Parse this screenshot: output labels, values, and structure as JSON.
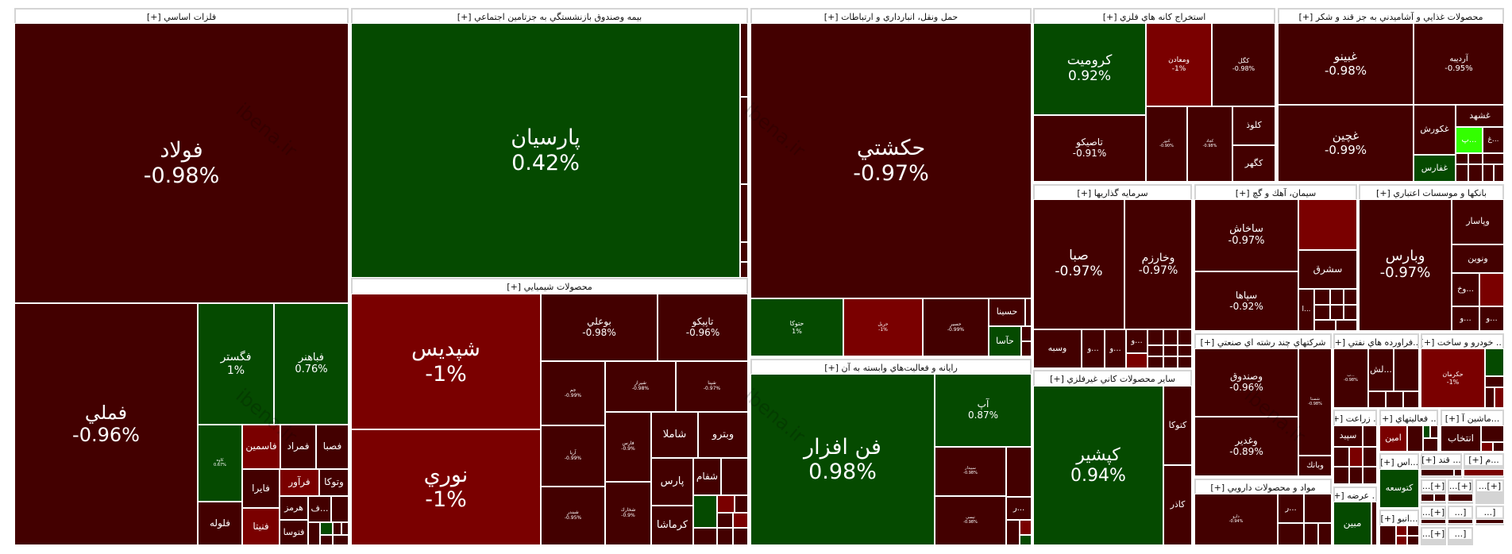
{
  "colors": {
    "dark": "#430000",
    "red": "#7a0000",
    "green": "#054a00",
    "lime": "#33ff00"
  },
  "watermark": "ibena.ir",
  "sectors": [
    {
      "title": "فلزات اساسي [+]",
      "cells": [
        {
          "name": "فولاد",
          "change": "-0.98%",
          "tone": "dark"
        },
        {
          "name": "فملي",
          "change": "-0.96%",
          "tone": "dark"
        },
        {
          "name": "فگستر",
          "change": "1%",
          "tone": "green"
        },
        {
          "name": "فباهنر",
          "change": "0.76%",
          "tone": "green"
        },
        {
          "name": "كاوه",
          "change": "0.67%",
          "tone": "green"
        },
        {
          "name": "فلوله",
          "tone": "dark"
        },
        {
          "name": "فاسمين",
          "tone": "red"
        },
        {
          "name": "فمراد",
          "tone": "dark"
        },
        {
          "name": "فصبا",
          "tone": "dark"
        },
        {
          "name": "فايرا",
          "tone": "dark"
        },
        {
          "name": "فنيتا",
          "tone": "red"
        },
        {
          "name": "فرآور",
          "tone": "red"
        },
        {
          "name": "وتوكا",
          "tone": "dark"
        },
        {
          "name": "هرمز",
          "tone": "dark"
        },
        {
          "name": "فتوسا",
          "tone": "dark"
        },
        {
          "name": "...ف",
          "tone": "dark"
        }
      ]
    },
    {
      "title": "بيمه وصندوق بازنشستگي به جزتامين اجتماعي [+]",
      "cells": [
        {
          "name": "پارسيان",
          "change": "0.42%",
          "tone": "green"
        }
      ]
    },
    {
      "title": "محصولات شيميايي [+]",
      "cells": [
        {
          "name": "شپديس",
          "change": "-1%",
          "tone": "red"
        },
        {
          "name": "نوري",
          "change": "-1%",
          "tone": "red"
        },
        {
          "name": "بوعلي",
          "change": "-0.98%",
          "tone": "dark"
        },
        {
          "name": "تاپيكو",
          "change": "-0.96%",
          "tone": "dark"
        },
        {
          "name": "جم",
          "change": "-0.99%",
          "tone": "dark"
        },
        {
          "name": "آريا",
          "change": "-0.99%",
          "tone": "dark"
        },
        {
          "name": "شبندر",
          "change": "-0.95%",
          "tone": "dark"
        },
        {
          "name": "شيراز",
          "change": "-0.98%",
          "tone": "dark"
        },
        {
          "name": "شپنا",
          "change": "-0.97%",
          "tone": "dark"
        },
        {
          "name": "فارس",
          "change": "-0.9%",
          "tone": "dark"
        },
        {
          "name": "شخارك",
          "change": "-0.9%",
          "tone": "dark"
        },
        {
          "name": "شاملا",
          "tone": "dark"
        },
        {
          "name": "وبترو",
          "tone": "dark"
        },
        {
          "name": "پارس",
          "tone": "dark"
        },
        {
          "name": "كرماشا",
          "tone": "dark"
        },
        {
          "name": "شفام",
          "tone": "dark"
        }
      ]
    },
    {
      "title": "حمل ونقل، انبارداري و ارتباطات [+]",
      "cells": [
        {
          "name": "حكشتي",
          "change": "-0.97%",
          "tone": "dark"
        },
        {
          "name": "حتوكا",
          "change": "1%",
          "tone": "green"
        },
        {
          "name": "حريل",
          "change": "-1%",
          "tone": "red"
        },
        {
          "name": "حسير",
          "change": "-0.99%",
          "tone": "dark"
        },
        {
          "name": "حسينا",
          "tone": "dark"
        },
        {
          "name": "حآسا",
          "tone": "green"
        }
      ]
    },
    {
      "title": "رايانه و فعاليت‌هاي وابسته به آن [+]",
      "cells": [
        {
          "name": "فن افزار",
          "change": "0.98%",
          "tone": "green"
        },
        {
          "name": "آپ",
          "change": "0.87%",
          "tone": "green"
        },
        {
          "name": "سپيدار",
          "change": "-0.98%",
          "tone": "dark"
        },
        {
          "name": "تپسي",
          "change": "-0.98%",
          "tone": "dark"
        },
        {
          "name": "...ر",
          "tone": "dark"
        }
      ]
    },
    {
      "title": "استخراج كانه هاي فلزي [+]",
      "cells": [
        {
          "name": "كروميت",
          "change": "0.92%",
          "tone": "green"
        },
        {
          "name": "ومعادن",
          "change": "-1%",
          "tone": "red"
        },
        {
          "name": "كگل",
          "change": "-0.98%",
          "tone": "dark"
        },
        {
          "name": "تاصيكو",
          "change": "-0.91%",
          "tone": "dark"
        },
        {
          "name": "كنور",
          "change": "-0.90%",
          "tone": "dark"
        },
        {
          "name": "كچاد",
          "change": "-0.98%",
          "tone": "dark"
        },
        {
          "name": "كلوذ",
          "tone": "dark"
        },
        {
          "name": "كگهر",
          "tone": "dark"
        }
      ]
    },
    {
      "title": "محصولات غذايي و آشاميدني به جز قند و شكر [+]",
      "cells": [
        {
          "name": "غبينو",
          "change": "-0.98%",
          "tone": "dark"
        },
        {
          "name": "آرديبه",
          "change": "-0.95%",
          "tone": "dark"
        },
        {
          "name": "غچين",
          "change": "-0.99%",
          "tone": "dark"
        },
        {
          "name": "غكورش",
          "tone": "dark"
        },
        {
          "name": "غشهد",
          "tone": "dark"
        },
        {
          "name": "...پ",
          "tone": "lime"
        },
        {
          "name": "...غ",
          "tone": "dark"
        },
        {
          "name": "غفارس",
          "tone": "green"
        }
      ]
    },
    {
      "title": "سرمايه گذاريها [+]",
      "cells": [
        {
          "name": "صبا",
          "change": "-0.97%",
          "tone": "dark"
        },
        {
          "name": "وخارزم",
          "change": "-0.97%",
          "tone": "dark"
        },
        {
          "name": "وسبه",
          "tone": "dark"
        },
        {
          "name": "...و",
          "tone": "dark"
        },
        {
          "name": "...و",
          "tone": "dark"
        },
        {
          "name": "...و",
          "tone": "dark"
        }
      ]
    },
    {
      "title": "سيمان، آهك و گچ [+]",
      "cells": [
        {
          "name": "ساخاش",
          "change": "-0.97%",
          "tone": "dark"
        },
        {
          "name": "سپاها",
          "change": "-0.92%",
          "tone": "dark"
        },
        {
          "name": "سشرق",
          "tone": "dark"
        },
        {
          "name": "...ا",
          "tone": "dark"
        }
      ]
    },
    {
      "title": "بانكها و موسسات اعتباري [+]",
      "cells": [
        {
          "name": "وبارس",
          "change": "-0.97%",
          "tone": "dark"
        },
        {
          "name": "وپاسار",
          "tone": "dark"
        },
        {
          "name": "ونوين",
          "tone": "dark"
        },
        {
          "name": "...وخ",
          "tone": "dark"
        },
        {
          "name": "...و",
          "tone": "dark"
        },
        {
          "name": "...و",
          "tone": "dark"
        }
      ]
    },
    {
      "title": "ساير محصولات كاني غيرفلزي [+]",
      "cells": [
        {
          "name": "كپشير",
          "change": "0.94%",
          "tone": "green"
        },
        {
          "name": "كتوكا",
          "tone": "dark"
        },
        {
          "name": "كاذر",
          "tone": "dark"
        }
      ]
    },
    {
      "title": "شركتهاي چند رشته اي صنعتي [+]",
      "cells": [
        {
          "name": "وصندوق",
          "change": "-0.96%",
          "tone": "dark"
        },
        {
          "name": "وغدير",
          "change": "-0.89%",
          "tone": "dark"
        },
        {
          "name": "شستا",
          "change": "-0.98%",
          "tone": "dark"
        },
        {
          "name": "وبانك",
          "tone": "dark"
        }
      ]
    },
    {
      "title": "مواد و محصولات دارويي [+]",
      "cells": [
        {
          "name": "دارو",
          "change": "-0.94%",
          "tone": "dark"
        },
        {
          "name": "...ر",
          "tone": "dark"
        }
      ]
    },
    {
      "title": "...فراورده هاي نفتي [+]",
      "cells": [
        {
          "name": "...ب",
          "change": "-0.98%",
          "tone": "dark"
        },
        {
          "name": "...لش",
          "tone": "dark"
        }
      ]
    },
    {
      "title": "... خودرو و ساخت [+]",
      "cells": [
        {
          "name": "حكرمان",
          "change": "-1%",
          "tone": "red"
        }
      ]
    },
    {
      "title": "... زراعت [+]",
      "cells": [
        {
          "name": "سپيد",
          "tone": "dark"
        }
      ]
    },
    {
      "title": "... فعاليتهاي [+]",
      "cells": [
        {
          "name": "امين",
          "tone": "red"
        }
      ]
    },
    {
      "title": "...ماشين آ [+]",
      "cells": [
        {
          "name": "انتخاب",
          "tone": "dark"
        }
      ]
    },
    {
      "title": "...اس [+]",
      "cells": [
        {
          "name": "كتوسعه",
          "tone": "green"
        }
      ]
    },
    {
      "title": "... قند [+]",
      "cells": []
    },
    {
      "title": "...م [+]",
      "cells": []
    },
    {
      "title": "... عرضه [+]",
      "cells": [
        {
          "name": "مبين",
          "tone": "green"
        }
      ]
    },
    {
      "title": "...انبو [+]",
      "cells": []
    },
    {
      "title": "[+]...",
      "cells": []
    },
    {
      "title": "[+]...",
      "cells": []
    },
    {
      "title": "[+]...",
      "cells": []
    },
    {
      "title": "[+]...",
      "cells": []
    },
    {
      "title": "[+]...",
      "cells": []
    },
    {
      "title": "[...",
      "cells": []
    },
    {
      "title": "[...",
      "cells": []
    },
    {
      "title": "[...",
      "cells": []
    }
  ]
}
